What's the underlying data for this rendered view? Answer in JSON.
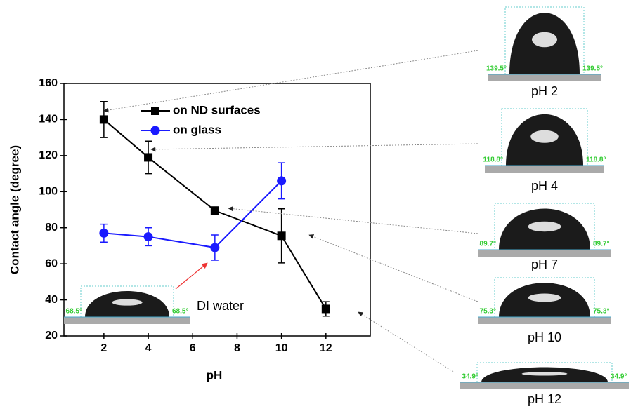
{
  "chart_data": {
    "type": "line",
    "x_label": "pH",
    "y_label": "Contact angle (degree)",
    "xlim": [
      0.2,
      14
    ],
    "ylim": [
      20,
      160
    ],
    "xticks": [
      2,
      4,
      6,
      8,
      10,
      12
    ],
    "yticks": [
      20,
      40,
      60,
      80,
      100,
      120,
      140,
      160
    ],
    "legend": "upper center",
    "series": [
      {
        "name": "on ND surfaces",
        "color": "#000000",
        "marker": "square",
        "x": [
          2,
          4,
          7,
          10,
          12
        ],
        "values": [
          140,
          119,
          89.5,
          75.5,
          35
        ],
        "errors": [
          10,
          9,
          2,
          15,
          4
        ]
      },
      {
        "name": "on glass",
        "color": "#1a1aff",
        "marker": "circle",
        "x": [
          2,
          4,
          7,
          10
        ],
        "values": [
          77,
          75,
          69,
          106
        ],
        "errors": [
          5,
          5,
          7,
          10
        ]
      }
    ]
  },
  "di_water": {
    "label": "DI water",
    "angle": "68.5°"
  },
  "insets": [
    {
      "label": "pH 2",
      "angle": "139.5°"
    },
    {
      "label": "pH 4",
      "angle": "118.8°"
    },
    {
      "label": "pH 7",
      "angle": "89.7°"
    },
    {
      "label": "pH 10",
      "angle": "75.3°"
    },
    {
      "label": "pH 12",
      "angle": "34.9°"
    }
  ]
}
